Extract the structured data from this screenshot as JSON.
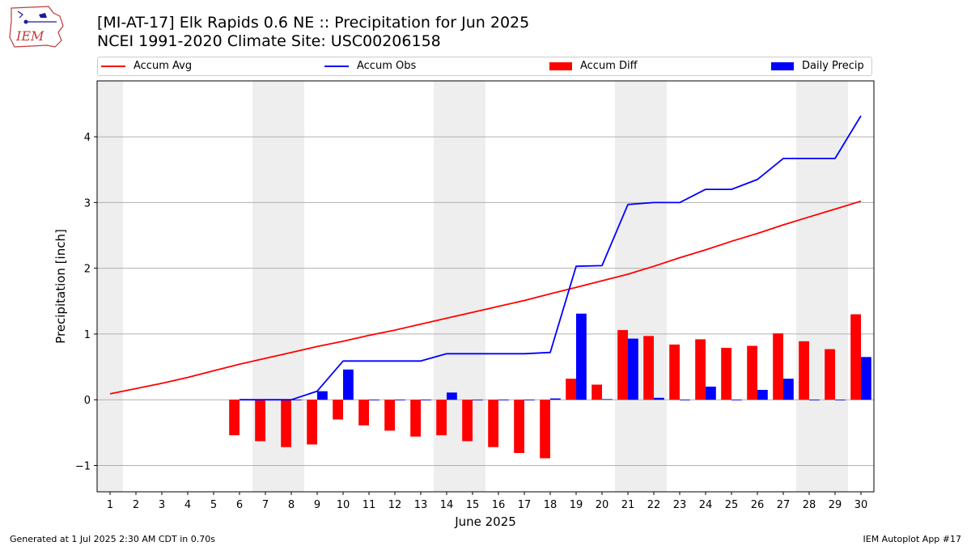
{
  "header": {
    "title_line1": "[MI-AT-17] Elk Rapids 0.6 NE :: Precipitation for Jun 2025",
    "title_line2": "NCEI 1991-2020 Climate Site: USC00206158",
    "logo_text": "IEM"
  },
  "footer": {
    "left": "Generated at 1 Jul 2025 2:30 AM CDT in 0.70s",
    "right": "IEM Autoplot App #17"
  },
  "colors": {
    "avg": "#ff0000",
    "obs": "#0000ff",
    "diff": "#ff0000",
    "daily": "#0000ff",
    "weekend_band": "#eeeeee",
    "grid": "#b0b0b0"
  },
  "chart_data": {
    "type": "bar",
    "title": "[MI-AT-17] Elk Rapids 0.6 NE :: Precipitation for Jun 2025",
    "subtitle": "NCEI 1991-2020 Climate Site: USC00206158",
    "xlabel": "June 2025",
    "ylabel": "Precipitation [inch]",
    "xlim": [
      0.5,
      30.5
    ],
    "ylim": [
      -1.4,
      4.85
    ],
    "yticks": [
      -1,
      0,
      1,
      2,
      3,
      4
    ],
    "ytick_labels": [
      "−1",
      "0",
      "1",
      "2",
      "3",
      "4"
    ],
    "grid": "horizontal",
    "legend_placement": "top, outside plot",
    "x": [
      1,
      2,
      3,
      4,
      5,
      6,
      7,
      8,
      9,
      10,
      11,
      12,
      13,
      14,
      15,
      16,
      17,
      18,
      19,
      20,
      21,
      22,
      23,
      24,
      25,
      26,
      27,
      28,
      29,
      30
    ],
    "weekend_bands": [
      [
        0.5,
        1.5
      ],
      [
        6.5,
        8.5
      ],
      [
        13.5,
        15.5
      ],
      [
        20.5,
        22.5
      ],
      [
        27.5,
        29.5
      ]
    ],
    "series": [
      {
        "name": "Accum Avg",
        "kind": "line",
        "values": [
          0.09,
          0.17,
          0.25,
          0.34,
          0.44,
          0.54,
          0.63,
          0.72,
          0.81,
          0.89,
          0.98,
          1.06,
          1.15,
          1.24,
          1.33,
          1.42,
          1.51,
          1.61,
          1.71,
          1.81,
          1.91,
          2.03,
          2.16,
          2.28,
          2.41,
          2.53,
          2.66,
          2.78,
          2.9,
          3.02
        ]
      },
      {
        "name": "Accum Obs",
        "kind": "line",
        "values": [
          null,
          null,
          null,
          null,
          null,
          0.0,
          0.0,
          0.0,
          0.13,
          0.59,
          0.59,
          0.59,
          0.59,
          0.7,
          0.7,
          0.7,
          0.7,
          0.72,
          2.03,
          2.04,
          2.97,
          3.0,
          3.0,
          3.2,
          3.2,
          3.35,
          3.67,
          3.67,
          3.67,
          4.32
        ]
      },
      {
        "name": "Accum Diff",
        "kind": "bar",
        "values": [
          null,
          null,
          null,
          null,
          null,
          -0.54,
          -0.63,
          -0.72,
          -0.68,
          -0.3,
          -0.39,
          -0.47,
          -0.56,
          -0.54,
          -0.63,
          -0.72,
          -0.81,
          -0.89,
          0.32,
          0.23,
          1.06,
          0.97,
          0.84,
          0.92,
          0.79,
          0.82,
          1.01,
          0.89,
          0.77,
          1.3
        ]
      },
      {
        "name": "Daily Precip",
        "kind": "bar",
        "values": [
          null,
          null,
          null,
          null,
          null,
          0.0,
          0.0,
          0.0,
          0.13,
          0.46,
          0.0,
          0.0,
          0.0,
          0.11,
          0.0,
          0.0,
          0.0,
          0.02,
          1.31,
          0.01,
          0.93,
          0.03,
          0.0,
          0.2,
          0.0,
          0.15,
          0.32,
          0.0,
          0.0,
          0.65
        ]
      }
    ]
  }
}
